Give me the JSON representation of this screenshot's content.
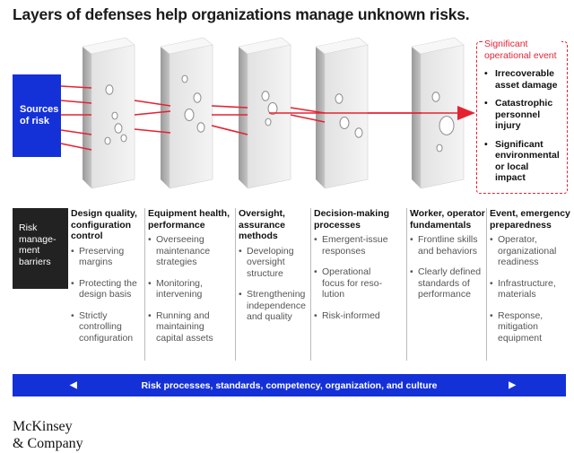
{
  "title": "Layers of defenses help organizations manage unknown risks.",
  "sources": {
    "label_line1": "Sources",
    "label_line2": "of risk"
  },
  "event": {
    "title_line1": "Significant",
    "title_line2": "operational event",
    "items": [
      {
        "l1": "Irrecoverable",
        "l2": "asset damage",
        "l3": ""
      },
      {
        "l1": "Catastrophic",
        "l2": "personnel injury",
        "l3": ""
      },
      {
        "l1": "Significant",
        "l2": "environmental",
        "l3": "or local impact"
      }
    ]
  },
  "barriers_label": {
    "l1": "Risk",
    "l2": "manage-",
    "l3": "ment",
    "l4": "barriers"
  },
  "columns": [
    {
      "head": [
        "Design quality,",
        "configuration",
        "control"
      ],
      "items": [
        [
          "Preserving",
          "margins"
        ],
        [
          "Protecting the",
          "design basis"
        ],
        [
          "Strictly",
          "controlling",
          "configuration"
        ]
      ]
    },
    {
      "head": [
        "Equipment health,",
        "performance"
      ],
      "items": [
        [
          "Overseeing",
          "maintenance",
          "strategies"
        ],
        [
          "Monitoring,",
          "intervening"
        ],
        [
          "Running and",
          "maintaining",
          "capital assets"
        ]
      ]
    },
    {
      "head": [
        "Oversight,",
        "assurance",
        "methods"
      ],
      "items": [
        [
          "Developing",
          "oversight",
          "structure"
        ],
        [
          "Strengthening",
          "independence",
          "and quality"
        ]
      ]
    },
    {
      "head": [
        "Decision-making",
        "processes"
      ],
      "items": [
        [
          "Emergent-issue",
          "responses"
        ],
        [
          "Operational",
          "focus for reso-",
          "lution"
        ],
        [
          "Risk-informed"
        ]
      ]
    },
    {
      "head": [
        "Worker, operator",
        "fundamentals"
      ],
      "items": [
        [
          "Frontline skills",
          "and behaviors"
        ],
        [
          "Clearly defined",
          "standards of",
          "performance"
        ]
      ]
    },
    {
      "head": [
        "Event, emergency",
        "preparedness"
      ],
      "items": [
        [
          "Operator,",
          "organizational",
          "readiness"
        ],
        [
          "Infrastructure,",
          "materials"
        ],
        [
          "Response,",
          "mitigation",
          "equipment"
        ]
      ]
    }
  ],
  "bottom_bar": {
    "label": "Risk processes,  standards,  competency, organization, and culture",
    "left_arrow": "◀",
    "right_arrow": "▶"
  },
  "brand": {
    "line1": "McKinsey",
    "line2": "& Company"
  },
  "colors": {
    "blue": "#1431d8",
    "red": "#e52233",
    "dark": "#222222"
  }
}
